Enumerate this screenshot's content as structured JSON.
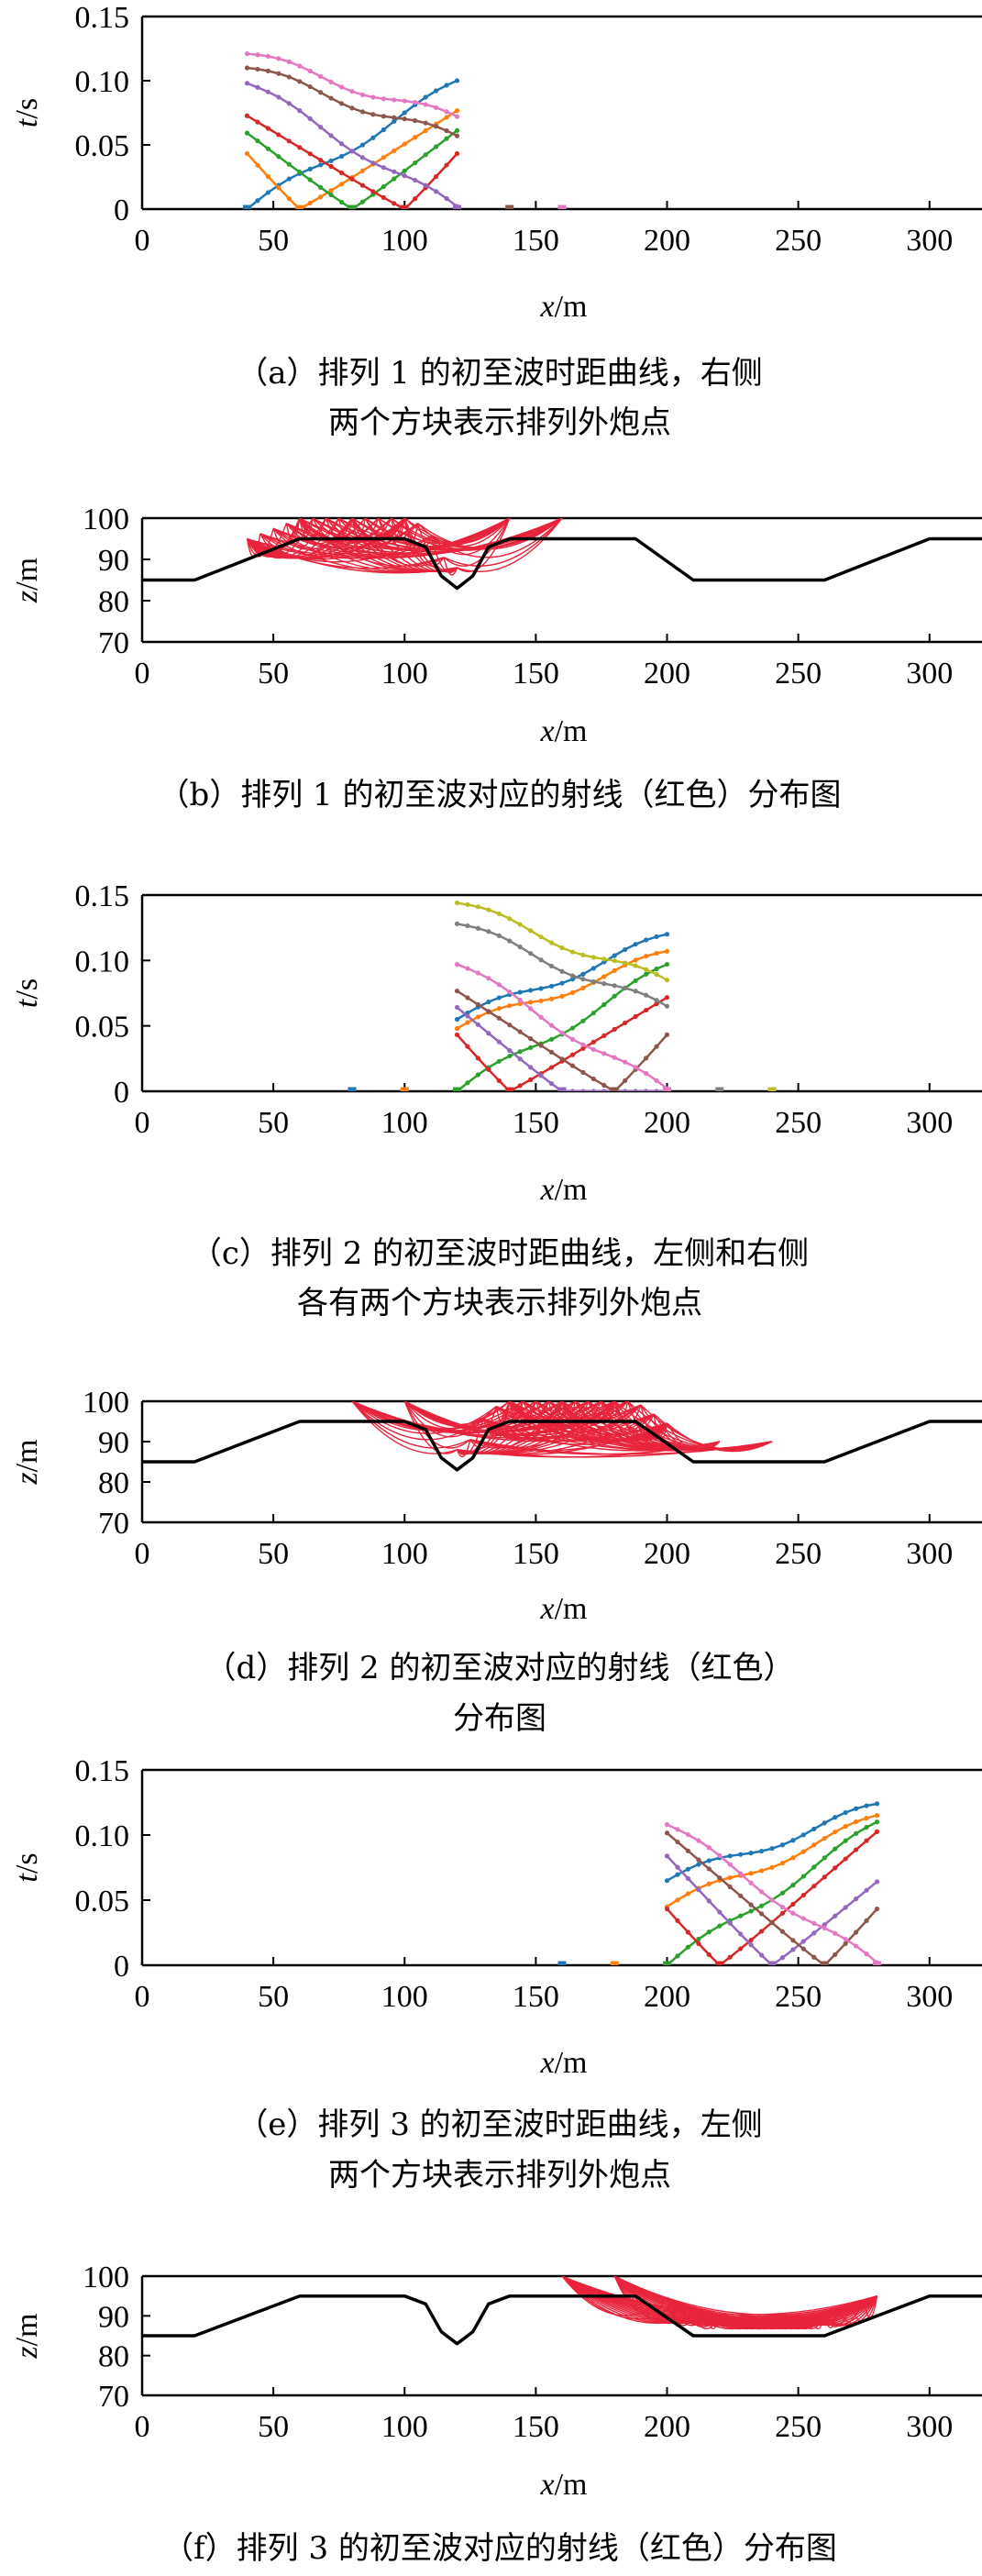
{
  "chart_data": [
    {
      "panel": "a",
      "type": "line",
      "xlabel_italic": "x",
      "xlabel_unit": "/m",
      "ylabel_italic": "t",
      "ylabel_unit": "/s",
      "xticks": [
        "0",
        "50",
        "100",
        "150",
        "200",
        "250",
        "300"
      ],
      "yticks": [
        "0",
        "0.05",
        "0.10",
        "0.15"
      ],
      "xlim": [
        0,
        320
      ],
      "ylim": [
        0,
        0.15
      ],
      "caption": [
        "（a）排列 1 的初至波时距曲线，右侧",
        "两个方块表示排列外炮点"
      ],
      "receiver_range": [
        40,
        120
      ],
      "series": [
        {
          "shot": 40,
          "color": "#1f77b4",
          "values": [
            0,
            0.098
          ]
        },
        {
          "shot": 60,
          "color": "#ff7f0e",
          "values": [
            0.045,
            0.077
          ]
        },
        {
          "shot": 80,
          "color": "#2ca02c",
          "values": [
            0.06,
            0.062
          ]
        },
        {
          "shot": 100,
          "color": "#d62728",
          "values": [
            0.073,
            0.045
          ]
        },
        {
          "shot": 120,
          "color": "#9467bd",
          "values": [
            0.098,
            0
          ]
        },
        {
          "shot": 140,
          "color": "#8c564b",
          "values": [
            0.11,
            0.055
          ]
        },
        {
          "shot": 160,
          "color": "#e377c2",
          "values": [
            0.121,
            0.07
          ]
        }
      ],
      "outside_shots": [
        {
          "x": 140,
          "color": "#8c564b"
        },
        {
          "x": 160,
          "color": "#e377c2"
        }
      ]
    },
    {
      "panel": "b",
      "type": "line",
      "xlabel_italic": "x",
      "xlabel_unit": "/m",
      "ylabel_italic": "z",
      "ylabel_unit": "/m",
      "xticks": [
        "0",
        "50",
        "100",
        "150",
        "200",
        "250",
        "300"
      ],
      "yticks": [
        "70",
        "80",
        "90",
        "100"
      ],
      "xlim": [
        0,
        320
      ],
      "ylim": [
        70,
        100
      ],
      "caption": [
        "（b）排列 1 的初至波对应的射线（红色）分布图"
      ],
      "ray_color": "#e8243c",
      "surface_color": "#000000",
      "shots": [
        40,
        60,
        80,
        100,
        120,
        140,
        160
      ],
      "receiver_range": [
        40,
        120
      ]
    },
    {
      "panel": "c",
      "type": "line",
      "xlabel_italic": "x",
      "xlabel_unit": "/m",
      "ylabel_italic": "t",
      "ylabel_unit": "/s",
      "xticks": [
        "0",
        "50",
        "100",
        "150",
        "200",
        "250",
        "300"
      ],
      "yticks": [
        "0",
        "0.05",
        "0.10",
        "0.15"
      ],
      "xlim": [
        0,
        320
      ],
      "ylim": [
        0,
        0.15
      ],
      "caption": [
        "（c）排列 2 的初至波时距曲线，左侧和右侧",
        "各有两个方块表示排列外炮点"
      ],
      "receiver_range": [
        120,
        200
      ],
      "series": [
        {
          "shot": 80,
          "color": "#1f77b4",
          "values": [
            0.055,
            0.118
          ]
        },
        {
          "shot": 100,
          "color": "#ff7f0e",
          "values": [
            0.048,
            0.105
          ]
        },
        {
          "shot": 120,
          "color": "#2ca02c",
          "values": [
            0,
            0.095
          ]
        },
        {
          "shot": 140,
          "color": "#d62728",
          "values": [
            0.045,
            0.072
          ]
        },
        {
          "shot": 160,
          "color": "#9467bd",
          "values": [
            0.065,
            0
          ]
        },
        {
          "shot": 180,
          "color": "#8c564b",
          "values": [
            0.077,
            0.045
          ]
        },
        {
          "shot": 200,
          "color": "#e377c2",
          "values": [
            0.097,
            0
          ]
        },
        {
          "shot": 220,
          "color": "#7f7f7f",
          "values": [
            0.128,
            0.063
          ]
        },
        {
          "shot": 240,
          "color": "#bcbd22",
          "values": [
            0.144,
            0.083
          ]
        }
      ],
      "outside_shots": [
        {
          "x": 80,
          "color": "#1f77b4"
        },
        {
          "x": 100,
          "color": "#ff7f0e"
        },
        {
          "x": 220,
          "color": "#7f7f7f"
        },
        {
          "x": 240,
          "color": "#bcbd22"
        }
      ]
    },
    {
      "panel": "d",
      "type": "line",
      "xlabel_italic": "x",
      "xlabel_unit": "/m",
      "ylabel_italic": "z",
      "ylabel_unit": "/m",
      "xticks": [
        "0",
        "50",
        "100",
        "150",
        "200",
        "250",
        "300"
      ],
      "yticks": [
        "70",
        "80",
        "90",
        "100"
      ],
      "xlim": [
        0,
        320
      ],
      "ylim": [
        70,
        100
      ],
      "caption": [
        "（d）排列 2 的初至波对应的射线（红色）",
        "分布图"
      ],
      "ray_color": "#e8243c",
      "surface_color": "#000000",
      "shots": [
        80,
        100,
        120,
        140,
        160,
        180,
        200,
        220,
        240
      ],
      "receiver_range": [
        120,
        200
      ]
    },
    {
      "panel": "e",
      "type": "line",
      "xlabel_italic": "x",
      "xlabel_unit": "/m",
      "ylabel_italic": "t",
      "ylabel_unit": "/s",
      "xticks": [
        "0",
        "50",
        "100",
        "150",
        "200",
        "250",
        "300"
      ],
      "yticks": [
        "0",
        "0.05",
        "0.10",
        "0.15"
      ],
      "xlim": [
        0,
        320
      ],
      "ylim": [
        0,
        0.15
      ],
      "caption": [
        "（e）排列 3 的初至波时距曲线，左侧",
        "两个方块表示排列外炮点"
      ],
      "receiver_range": [
        200,
        280
      ],
      "series": [
        {
          "shot": 160,
          "color": "#1f77b4",
          "values": [
            0.065,
            0.122
          ]
        },
        {
          "shot": 180,
          "color": "#ff7f0e",
          "values": [
            0.045,
            0.113
          ]
        },
        {
          "shot": 200,
          "color": "#2ca02c",
          "values": [
            0,
            0.108
          ]
        },
        {
          "shot": 220,
          "color": "#d62728",
          "values": [
            0.045,
            0.103
          ]
        },
        {
          "shot": 240,
          "color": "#9467bd",
          "values": [
            0.085,
            0.065
          ]
        },
        {
          "shot": 260,
          "color": "#8c564b",
          "values": [
            0.102,
            0.045
          ]
        },
        {
          "shot": 280,
          "color": "#e377c2",
          "values": [
            0.108,
            0
          ]
        }
      ],
      "outside_shots": [
        {
          "x": 160,
          "color": "#1f77b4"
        },
        {
          "x": 180,
          "color": "#ff7f0e"
        }
      ]
    },
    {
      "panel": "f",
      "type": "line",
      "xlabel_italic": "x",
      "xlabel_unit": "/m",
      "ylabel_italic": "z",
      "ylabel_unit": "/m",
      "xticks": [
        "0",
        "50",
        "100",
        "150",
        "200",
        "250",
        "300"
      ],
      "yticks": [
        "70",
        "80",
        "90",
        "100"
      ],
      "xlim": [
        0,
        320
      ],
      "ylim": [
        70,
        100
      ],
      "caption": [
        "（f）排列 3 的初至波对应的射线（红色）分布图"
      ],
      "ray_color": "#e8243c",
      "surface_color": "#000000",
      "shots": [
        160,
        180,
        200,
        220,
        240,
        260,
        280
      ],
      "receiver_range": [
        200,
        280
      ]
    }
  ],
  "surface_profile": {
    "x": [
      0,
      20,
      60,
      100,
      108,
      114,
      120,
      126,
      132,
      140,
      188,
      210,
      260,
      300,
      320
    ],
    "z": [
      85,
      85,
      95,
      95,
      93,
      86,
      83,
      86,
      93,
      95,
      95,
      85,
      85,
      95,
      95
    ]
  }
}
